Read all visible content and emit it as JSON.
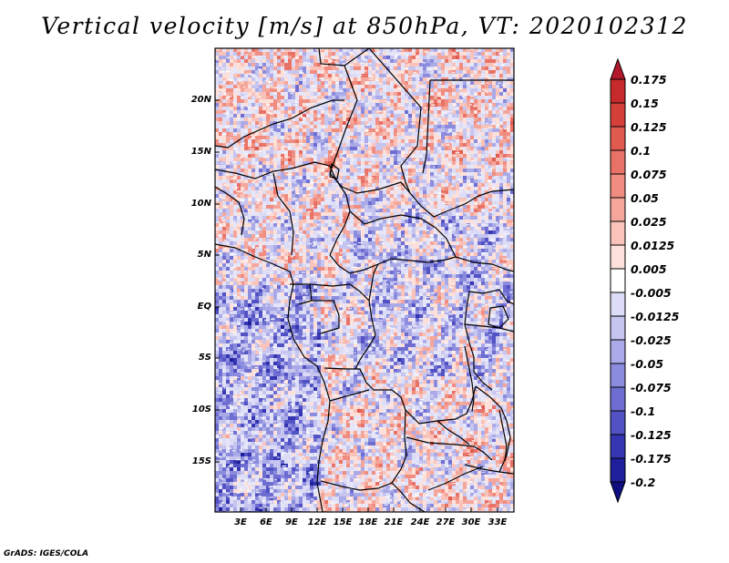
{
  "title": "Vertical velocity [m/s] at 850hPa, VT: 2020102312",
  "credit": "GrADS: IGES/COLA",
  "lat_labels": [
    "20N",
    "15N",
    "10N",
    "5N",
    "EQ",
    "5S",
    "10S",
    "15S"
  ],
  "lon_labels": [
    "3E",
    "6E",
    "9E",
    "12E",
    "15E",
    "18E",
    "21E",
    "24E",
    "27E",
    "30E",
    "33E"
  ],
  "colorbar": {
    "labels": [
      "0.175",
      "0.15",
      "0.125",
      "0.1",
      "0.075",
      "0.05",
      "0.025",
      "0.0125",
      "0.005",
      "-0.005",
      "-0.0125",
      "-0.025",
      "-0.05",
      "-0.075",
      "-0.1",
      "-0.125",
      "-0.175",
      "-0.2"
    ],
    "colors": [
      "#b2182b",
      "#c62a2a",
      "#d6403b",
      "#e05a50",
      "#e87266",
      "#f08c80",
      "#f5a69b",
      "#f9c3b9",
      "#fde0da",
      "#ffffff",
      "#dcdcf6",
      "#c5c5f0",
      "#aaaae8",
      "#8c8cde",
      "#6e6ed2",
      "#5252c4",
      "#3535b2",
      "#1f1f9c",
      "#0e0e80"
    ]
  },
  "map": {
    "extent": {
      "lon_min": 0,
      "lon_max": 35,
      "lat_min": -20,
      "lat_max": 25
    },
    "field": "vertical velocity",
    "level": "850hPa",
    "units": "m/s",
    "valid_time": "2020102312"
  }
}
